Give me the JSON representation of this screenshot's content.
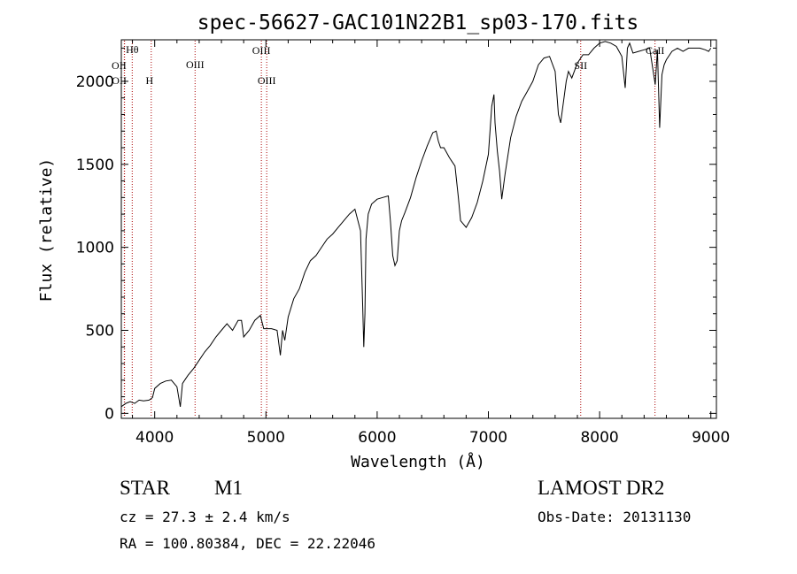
{
  "footer": {
    "object_class": "STAR",
    "subclass": "M1",
    "redshift_text": "cz = 27.3 ± 2.4 km/s",
    "coords_text": "RA = 100.80384, DEC =  22.22046",
    "survey": "LAMOST DR2",
    "obs_date_text": "Obs-Date: 20131130"
  },
  "chart_data": {
    "type": "line",
    "title": "spec-56627-GAC101N22B1_sp03-170.fits",
    "xlabel": "Wavelength (Å)",
    "ylabel": "Flux (relative)",
    "xlim": [
      3700,
      9050
    ],
    "ylim": [
      -30,
      2250
    ],
    "x_ticks": [
      4000,
      5000,
      6000,
      7000,
      8000,
      9000
    ],
    "y_ticks": [
      0,
      500,
      1000,
      1500,
      2000
    ],
    "line_color": "#000000",
    "marker_color": "#aa0000",
    "series": [
      {
        "x": [
          3700,
          3740,
          3780,
          3820,
          3860,
          3900,
          3950,
          3980,
          4000,
          4050,
          4100,
          4150,
          4200,
          4230,
          4250,
          4270,
          4300,
          4350,
          4400,
          4450,
          4500,
          4550,
          4600,
          4650,
          4700,
          4750,
          4780,
          4800,
          4850,
          4900,
          4950,
          4980,
          5000,
          5050,
          5100,
          5130,
          5150,
          5170,
          5200,
          5250,
          5300,
          5350,
          5400,
          5450,
          5500,
          5550,
          5600,
          5650,
          5700,
          5750,
          5800,
          5850,
          5870,
          5880,
          5890,
          5900,
          5920,
          5950,
          6000,
          6050,
          6100,
          6120,
          6140,
          6160,
          6180,
          6200,
          6220,
          6250,
          6300,
          6350,
          6400,
          6450,
          6500,
          6530,
          6550,
          6570,
          6600,
          6650,
          6700,
          6730,
          6750,
          6800,
          6850,
          6900,
          6950,
          7000,
          7030,
          7050,
          7060,
          7080,
          7100,
          7120,
          7150,
          7200,
          7250,
          7300,
          7350,
          7400,
          7450,
          7500,
          7550,
          7600,
          7630,
          7650,
          7680,
          7700,
          7720,
          7750,
          7800,
          7850,
          7900,
          7950,
          8000,
          8050,
          8100,
          8150,
          8200,
          8230,
          8250,
          8270,
          8300,
          8350,
          8400,
          8450,
          8500,
          8520,
          8540,
          8560,
          8580,
          8600,
          8650,
          8700,
          8750,
          8800,
          8850,
          8900,
          8950,
          8980,
          9000
        ],
        "y": [
          40,
          60,
          70,
          60,
          80,
          75,
          80,
          95,
          150,
          180,
          195,
          200,
          160,
          40,
          180,
          200,
          230,
          270,
          320,
          370,
          410,
          460,
          500,
          540,
          500,
          560,
          560,
          460,
          500,
          560,
          590,
          510,
          510,
          510,
          500,
          350,
          500,
          440,
          580,
          690,
          750,
          850,
          920,
          950,
          1000,
          1050,
          1080,
          1120,
          1160,
          1200,
          1230,
          1100,
          640,
          400,
          600,
          1050,
          1200,
          1260,
          1290,
          1300,
          1310,
          1150,
          950,
          890,
          920,
          1100,
          1160,
          1210,
          1300,
          1420,
          1520,
          1610,
          1690,
          1700,
          1640,
          1600,
          1600,
          1540,
          1490,
          1300,
          1160,
          1120,
          1180,
          1270,
          1400,
          1560,
          1850,
          1920,
          1750,
          1580,
          1460,
          1290,
          1440,
          1660,
          1790,
          1880,
          1940,
          2000,
          2100,
          2140,
          2150,
          2060,
          1800,
          1750,
          1900,
          2000,
          2060,
          2020,
          2110,
          2160,
          2160,
          2200,
          2230,
          2240,
          2230,
          2210,
          2150,
          1960,
          2200,
          2230,
          2170,
          2180,
          2190,
          2200,
          1980,
          2190,
          1720,
          2040,
          2100,
          2130,
          2180,
          2200,
          2180,
          2200,
          2200,
          2200,
          2190,
          2180,
          2200
        ]
      }
    ],
    "lines": [
      {
        "label": "Hθ",
        "x": 3798
      },
      {
        "label": "OII",
        "x": 3727
      },
      {
        "label": "OII",
        "x": 3729
      },
      {
        "label": "H",
        "x": 3969
      },
      {
        "label": "OIII",
        "x": 4363
      },
      {
        "label": "OIII",
        "x": 4959
      },
      {
        "label": "OIII",
        "x": 5007
      },
      {
        "label": "SII",
        "x": 7830
      },
      {
        "label": "CaII",
        "x": 8498
      }
    ]
  }
}
